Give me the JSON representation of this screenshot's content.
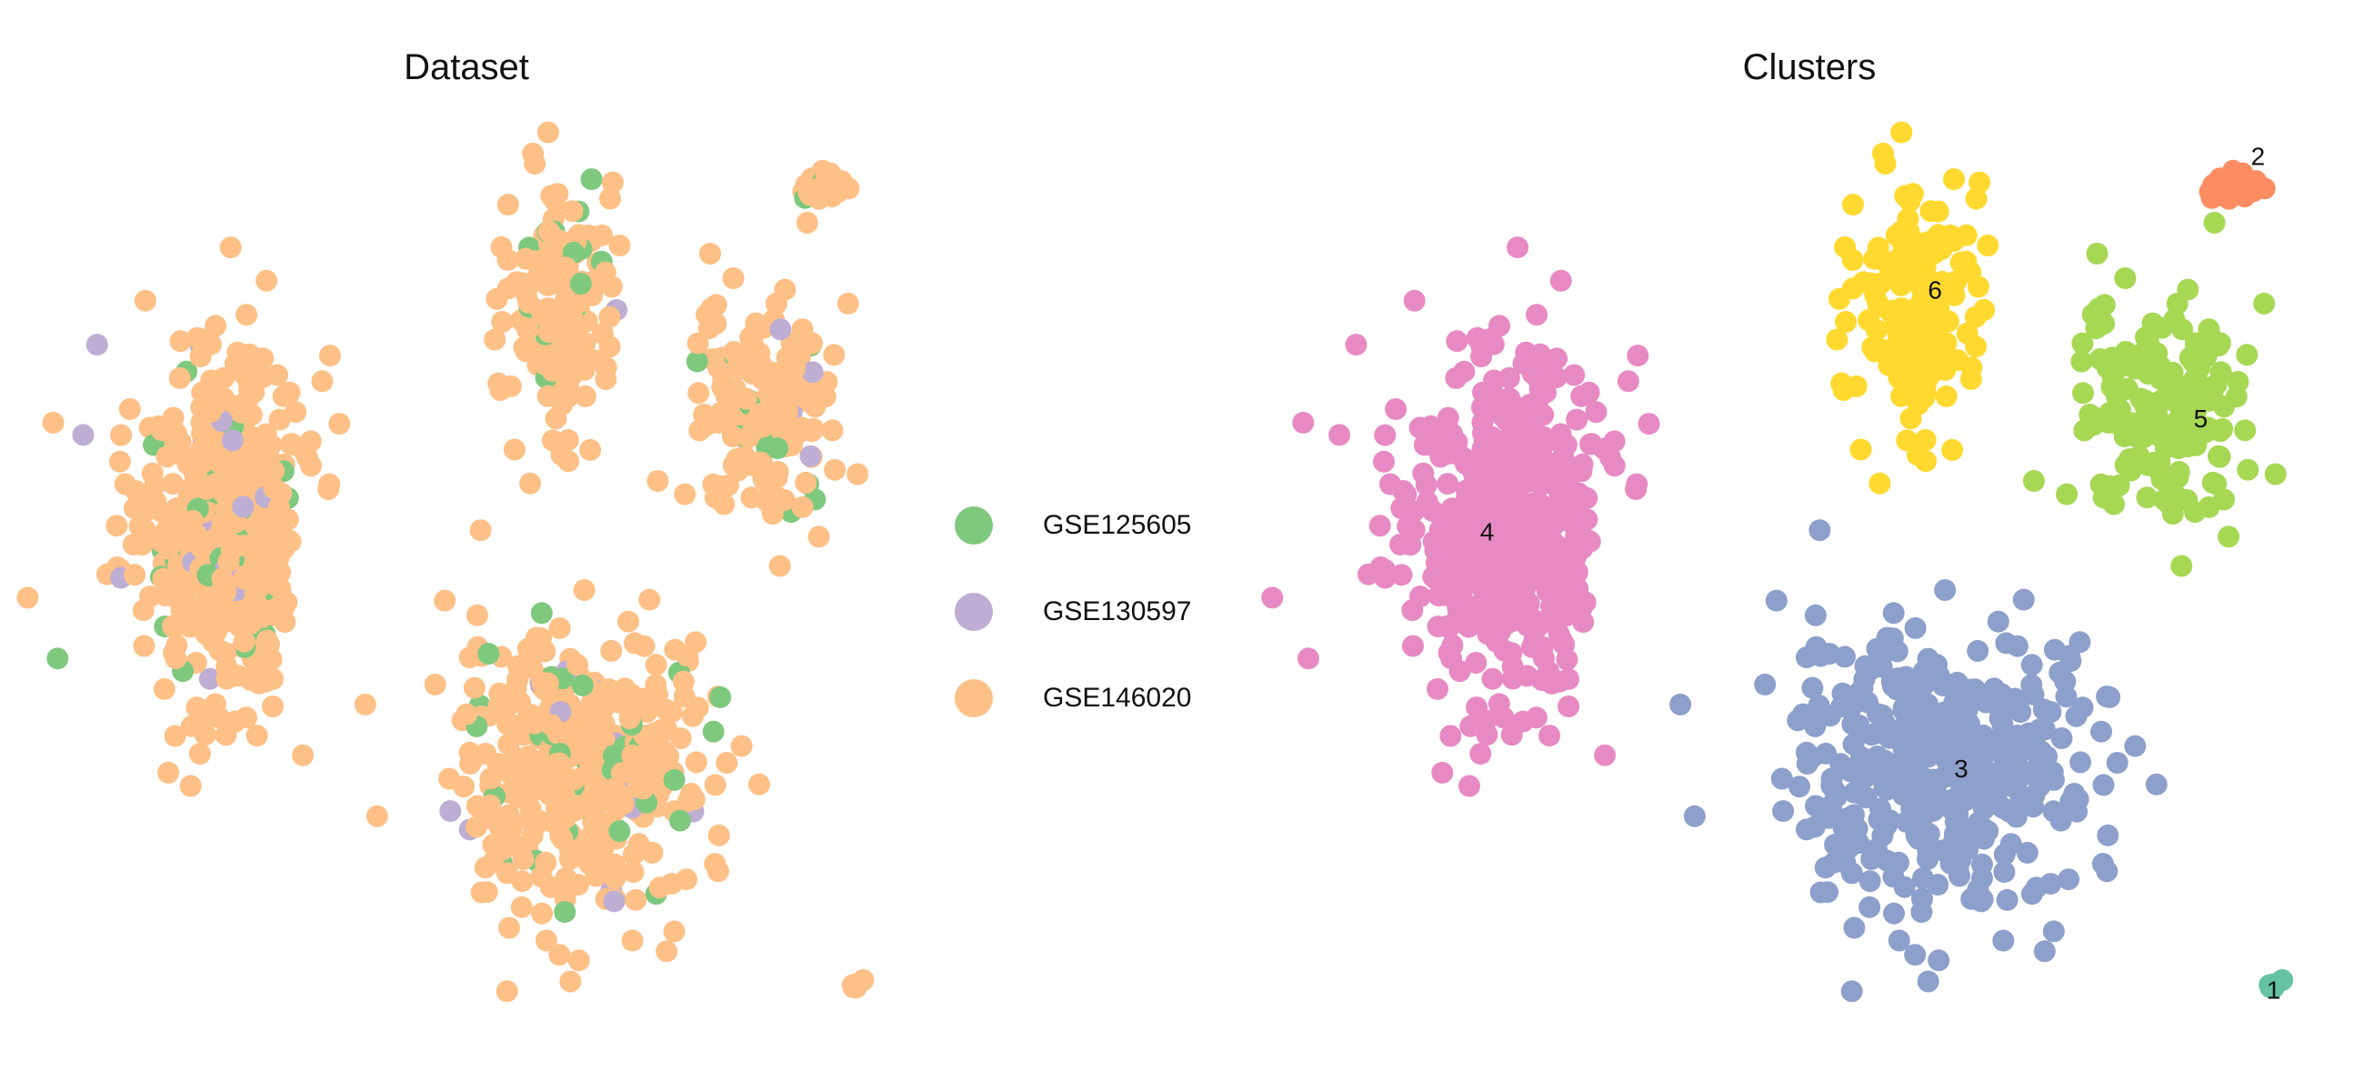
{
  "chart_data": [
    {
      "type": "scatter",
      "title": "Dataset",
      "grid": false,
      "legend_placement": "right",
      "legend": [
        {
          "label": "GSE125605",
          "color": "#7fc97f"
        },
        {
          "label": "GSE130597",
          "color": "#beaed4"
        },
        {
          "label": "GSE146020",
          "color": "#fdc086"
        }
      ],
      "groups": [
        {
          "name": "cluster-4-region",
          "center": [
            -6.2,
            1.5
          ],
          "spread": [
            2.2,
            3.4
          ],
          "count": 480
        },
        {
          "name": "cluster-3-region",
          "center": [
            2.2,
            -3.2
          ],
          "spread": [
            3.0,
            2.6
          ],
          "count": 420
        },
        {
          "name": "cluster-6-region",
          "center": [
            1.8,
            5.8
          ],
          "spread": [
            1.2,
            2.4
          ],
          "count": 170
        },
        {
          "name": "cluster-5-region",
          "center": [
            6.4,
            3.6
          ],
          "spread": [
            1.6,
            2.2
          ],
          "count": 160
        },
        {
          "name": "cluster-2-region",
          "center": [
            7.8,
            8.0
          ],
          "spread": [
            0.4,
            0.35
          ],
          "count": 35
        },
        {
          "name": "cluster-1-region",
          "center": [
            8.6,
            -7.5
          ],
          "spread": [
            0.15,
            0.15
          ],
          "count": 8
        }
      ],
      "dataset_mix": {
        "GSE125605": 0.08,
        "GSE130597": 0.04,
        "GSE146020": 0.88
      }
    },
    {
      "type": "scatter",
      "title": "Clusters",
      "grid": false,
      "clusters": [
        {
          "label": "1",
          "color": "#66c2a5",
          "label_pos": [
            8.6,
            -7.6
          ]
        },
        {
          "label": "2",
          "color": "#fc8d62",
          "label_pos": [
            8.3,
            8.6
          ]
        },
        {
          "label": "3",
          "color": "#8da0cb",
          "label_pos": [
            2.6,
            -3.3
          ]
        },
        {
          "label": "4",
          "color": "#e78ac3",
          "label_pos": [
            -6.5,
            1.3
          ]
        },
        {
          "label": "5",
          "color": "#a6d854",
          "label_pos": [
            7.2,
            3.5
          ]
        },
        {
          "label": "6",
          "color": "#ffd92f",
          "label_pos": [
            2.1,
            6.0
          ]
        }
      ]
    }
  ]
}
